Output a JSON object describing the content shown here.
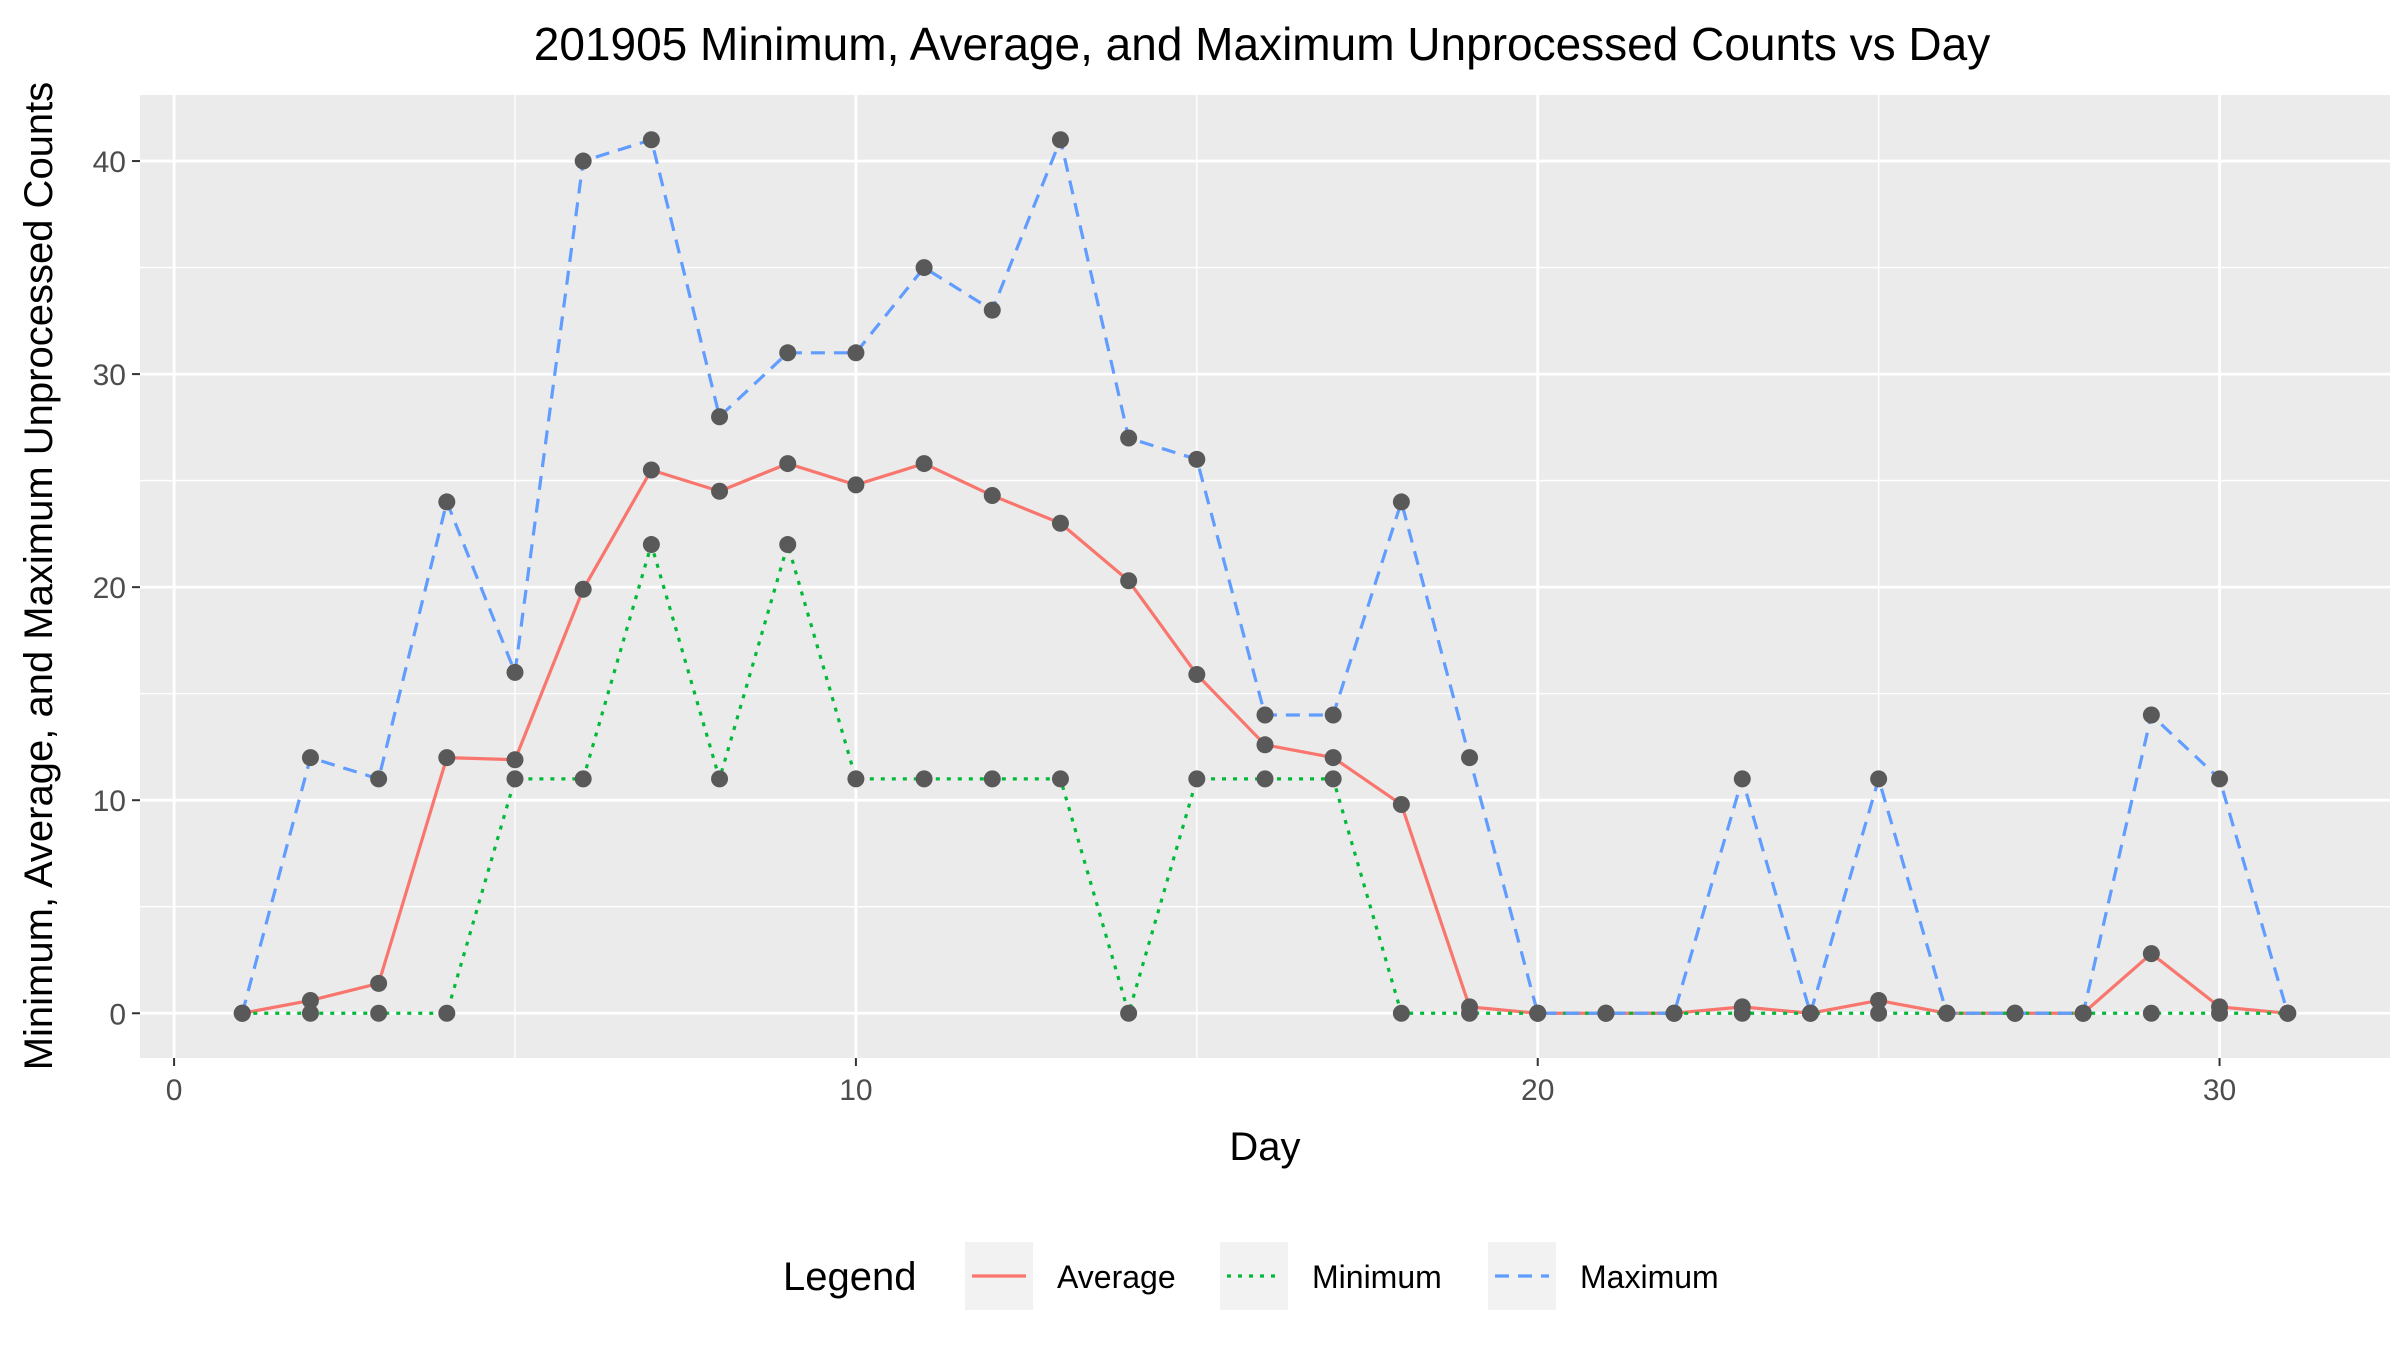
{
  "chart_data": {
    "type": "line",
    "title": "201905 Minimum, Average, and Maximum Unprocessed Counts vs Day",
    "xlabel": "Day",
    "ylabel": "Minimum, Average, and Maximum Unprocessed Counts",
    "xlim": [
      -0.5,
      32.5
    ],
    "ylim": [
      -2.1,
      43.1
    ],
    "x_ticks": [
      0,
      10,
      20,
      30
    ],
    "y_ticks": [
      0,
      10,
      20,
      30,
      40
    ],
    "x_tick_labels": [
      "0",
      "10",
      "20",
      "30"
    ],
    "y_tick_labels": [
      "0",
      "10",
      "20",
      "30",
      "40"
    ],
    "grid": true,
    "legend": {
      "title": "Legend",
      "position": "bottom"
    },
    "x": [
      1,
      2,
      3,
      4,
      5,
      6,
      7,
      8,
      9,
      10,
      11,
      12,
      13,
      14,
      15,
      16,
      17,
      18,
      19,
      20,
      21,
      22,
      23,
      24,
      25,
      26,
      27,
      28,
      29,
      30,
      31
    ],
    "series": [
      {
        "name": "Average",
        "color": "#f8766d",
        "dash": "solid",
        "values": [
          0,
          0.6,
          1.4,
          12,
          11.9,
          19.9,
          25.5,
          24.5,
          25.8,
          24.8,
          25.8,
          24.3,
          23,
          20.3,
          15.9,
          12.6,
          12,
          9.8,
          0.3,
          0,
          0,
          0,
          0.3,
          0,
          0.6,
          0,
          0,
          0,
          2.8,
          0.3,
          0
        ]
      },
      {
        "name": "Minimum",
        "color": "#00ba38",
        "dash": "dotted",
        "values": [
          0,
          0,
          0,
          0,
          11,
          11,
          22,
          11,
          22,
          11,
          11,
          11,
          11,
          0,
          11,
          11,
          11,
          0,
          0,
          0,
          0,
          0,
          0,
          0,
          0,
          0,
          0,
          0,
          0,
          0,
          0
        ]
      },
      {
        "name": "Maximum",
        "color": "#619cff",
        "dash": "dashed",
        "values": [
          0,
          12,
          11,
          24,
          16,
          40,
          41,
          28,
          31,
          31,
          35,
          33,
          41,
          27,
          26,
          14,
          14,
          24,
          12,
          0,
          0,
          0,
          11,
          0,
          11,
          0,
          0,
          0,
          14,
          11,
          0
        ]
      }
    ]
  }
}
